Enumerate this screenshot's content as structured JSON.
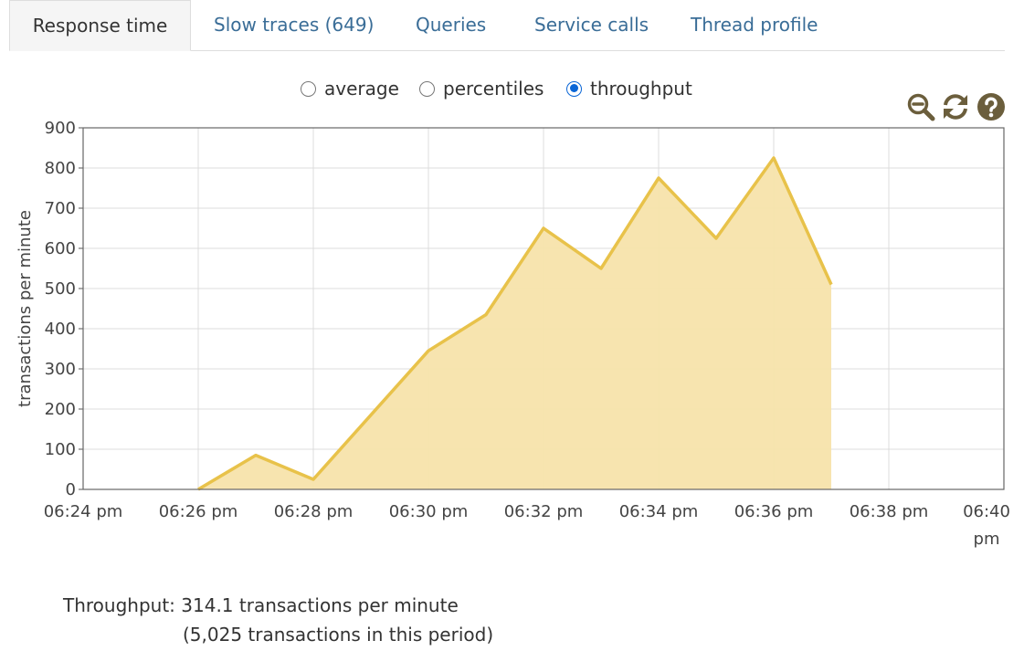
{
  "tabs": [
    {
      "label": "Response time",
      "active": true
    },
    {
      "label": "Slow traces (649)",
      "active": false
    },
    {
      "label": "Queries",
      "active": false
    },
    {
      "label": "Service calls",
      "active": false
    },
    {
      "label": "Thread profile",
      "active": false
    }
  ],
  "view_options": {
    "average": "average",
    "percentiles": "percentiles",
    "throughput": "throughput",
    "selected": "throughput"
  },
  "toolbar": {
    "zoom_out_icon": "zoom-out-icon",
    "refresh_icon": "refresh-icon",
    "help_icon": "help-icon"
  },
  "colors": {
    "series_line": "#e8c24a",
    "series_fill": "#f7e3ab",
    "tab_link": "#3a6d97",
    "icon": "#6b5e3c"
  },
  "chart_data": {
    "type": "area",
    "ylabel": "transactions per minute",
    "ylim": [
      0,
      900
    ],
    "yticks": [
      "0",
      "100",
      "200",
      "300",
      "400",
      "500",
      "600",
      "700",
      "800",
      "900"
    ],
    "xticks": [
      {
        "line1": "06:24 pm",
        "line2": ""
      },
      {
        "line1": "06:26 pm",
        "line2": ""
      },
      {
        "line1": "06:28 pm",
        "line2": ""
      },
      {
        "line1": "06:30 pm",
        "line2": ""
      },
      {
        "line1": "06:32 pm",
        "line2": ""
      },
      {
        "line1": "06:34 pm",
        "line2": ""
      },
      {
        "line1": "06:36 pm",
        "line2": ""
      },
      {
        "line1": "06:38 pm",
        "line2": ""
      },
      {
        "line1": "06:40",
        "line2": "pm"
      }
    ],
    "xlim": [
      "06:24 pm",
      "06:40 pm"
    ],
    "grid": true,
    "series": [
      {
        "x": [
          "06:26 pm",
          "06:27 pm",
          "06:28 pm",
          "06:29 pm",
          "06:30 pm",
          "06:31 pm",
          "06:32 pm",
          "06:33 pm",
          "06:34 pm",
          "06:35 pm",
          "06:36 pm",
          "06:37 pm"
        ],
        "values": [
          0,
          85,
          25,
          185,
          345,
          435,
          650,
          550,
          775,
          625,
          825,
          510
        ]
      }
    ]
  },
  "summary": {
    "line1": "Throughput: 314.1 transactions per minute",
    "line2": "(5,025 transactions in this period)"
  }
}
